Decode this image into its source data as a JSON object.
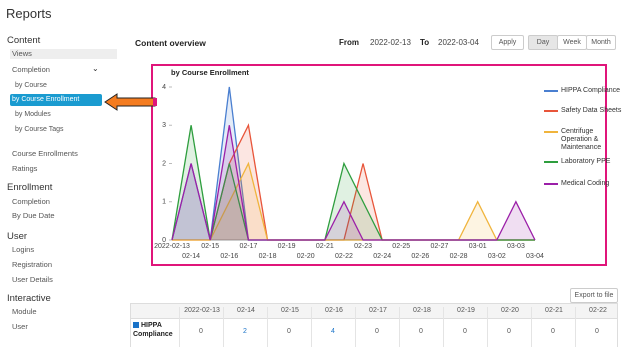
{
  "header": {
    "title": "Reports"
  },
  "sidebar": [
    {
      "title": "Content",
      "items": [
        "Views",
        "Completion",
        "by Course",
        "by Course Enrollment",
        "by Modules",
        "by Course Tags",
        "Course Enrollments",
        "Ratings"
      ]
    },
    {
      "title": "Enrollment",
      "items": [
        "Completion",
        "By Due Date"
      ]
    },
    {
      "title": "User",
      "items": [
        "Logins",
        "Registration",
        "User Details"
      ]
    },
    {
      "title": "Interactive",
      "items": [
        "Module",
        "User"
      ]
    }
  ],
  "toolbar": {
    "title": "Content overview",
    "from_label": "From",
    "from": "2022-02-13",
    "to_label": "To",
    "to": "2022-03-04",
    "apply": "Apply",
    "periods": [
      "Day",
      "Week",
      "Month"
    ]
  },
  "chart_data": {
    "type": "line",
    "title": "by Course Enrollment",
    "categories": [
      "2022-02-13",
      "02-14",
      "02-15",
      "02-16",
      "02-17",
      "02-18",
      "02-19",
      "02-20",
      "02-21",
      "02-22",
      "02-23",
      "02-24",
      "02-25",
      "02-26",
      "02-27",
      "02-28",
      "03-01",
      "03-02",
      "03-03",
      "03-04"
    ],
    "ylim": [
      0,
      4
    ],
    "yticks": [
      0,
      1,
      2,
      3,
      4
    ],
    "grid": false,
    "area": true,
    "legend": "right",
    "series": [
      {
        "name": "HIPPA Compliance",
        "color": "#4a7fd0",
        "values": [
          0,
          2,
          0,
          4,
          0,
          0,
          0,
          0,
          0,
          0,
          0,
          0,
          0,
          0,
          0,
          0,
          0,
          0,
          0,
          0
        ]
      },
      {
        "name": "Safety Data Sheets",
        "color": "#e8553a",
        "values": [
          0,
          0,
          0,
          2,
          3,
          0,
          0,
          0,
          0,
          0,
          2,
          0,
          0,
          0,
          0,
          0,
          0,
          0,
          0,
          0
        ]
      },
      {
        "name": "Centrifuge Operation & Maintenance",
        "color": "#f0b43c",
        "values": [
          0,
          0,
          0,
          1,
          2,
          0,
          0,
          0,
          0,
          0,
          0,
          0,
          0,
          0,
          0,
          0,
          1,
          0,
          0,
          0
        ]
      },
      {
        "name": "Laboratory PPE",
        "color": "#2e9e3e",
        "values": [
          0,
          3,
          0,
          2,
          0,
          0,
          0,
          0,
          0,
          2,
          1,
          0,
          0,
          0,
          0,
          0,
          0,
          0,
          0,
          0
        ]
      },
      {
        "name": "Medical Coding",
        "color": "#9b1fa8",
        "values": [
          0,
          2,
          0,
          3,
          0,
          0,
          0,
          0,
          0,
          1,
          0,
          0,
          0,
          0,
          0,
          0,
          0,
          0,
          1,
          0
        ]
      }
    ]
  },
  "table": {
    "export": "Export to file",
    "columns": [
      "2022-02-13",
      "02-14",
      "02-15",
      "02-16",
      "02-17",
      "02-18",
      "02-19",
      "02-20",
      "02-21",
      "02-22"
    ],
    "rows": [
      {
        "name": "HIPPA Compliance",
        "values": [
          0,
          2,
          0,
          4,
          0,
          0,
          0,
          0,
          0,
          0
        ]
      }
    ]
  }
}
